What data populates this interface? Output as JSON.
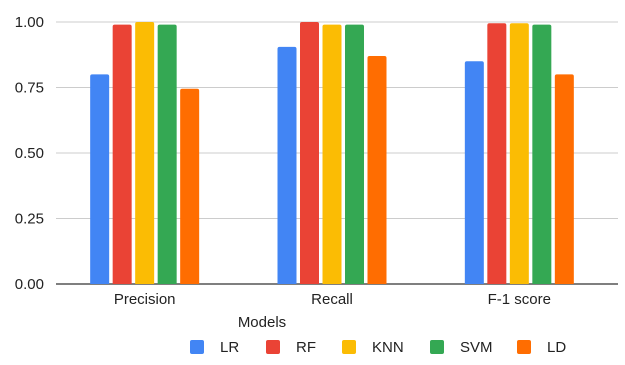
{
  "chart_data": {
    "type": "bar",
    "title": "",
    "xlabel": "Models",
    "ylabel": "",
    "ylim": [
      0,
      1
    ],
    "yticks": [
      0.0,
      0.25,
      0.5,
      0.75,
      1.0
    ],
    "ytick_labels": [
      "0.00",
      "0.25",
      "0.50",
      "0.75",
      "1.00"
    ],
    "categories": [
      "Precision",
      "Recall",
      "F-1 score"
    ],
    "series": [
      {
        "name": "LR",
        "color": "#4285F4",
        "values": [
          0.8,
          0.905,
          0.85
        ]
      },
      {
        "name": "RF",
        "color": "#EA4335",
        "values": [
          0.99,
          1.0,
          0.995
        ]
      },
      {
        "name": "KNN",
        "color": "#FBBC04",
        "values": [
          1.0,
          0.99,
          0.995
        ]
      },
      {
        "name": "SVM",
        "color": "#34A853",
        "values": [
          0.99,
          0.99,
          0.99
        ]
      },
      {
        "name": "LD",
        "color": "#FF6D01",
        "values": [
          0.745,
          0.87,
          0.8
        ]
      }
    ],
    "grid": true,
    "legend_position": "bottom"
  }
}
